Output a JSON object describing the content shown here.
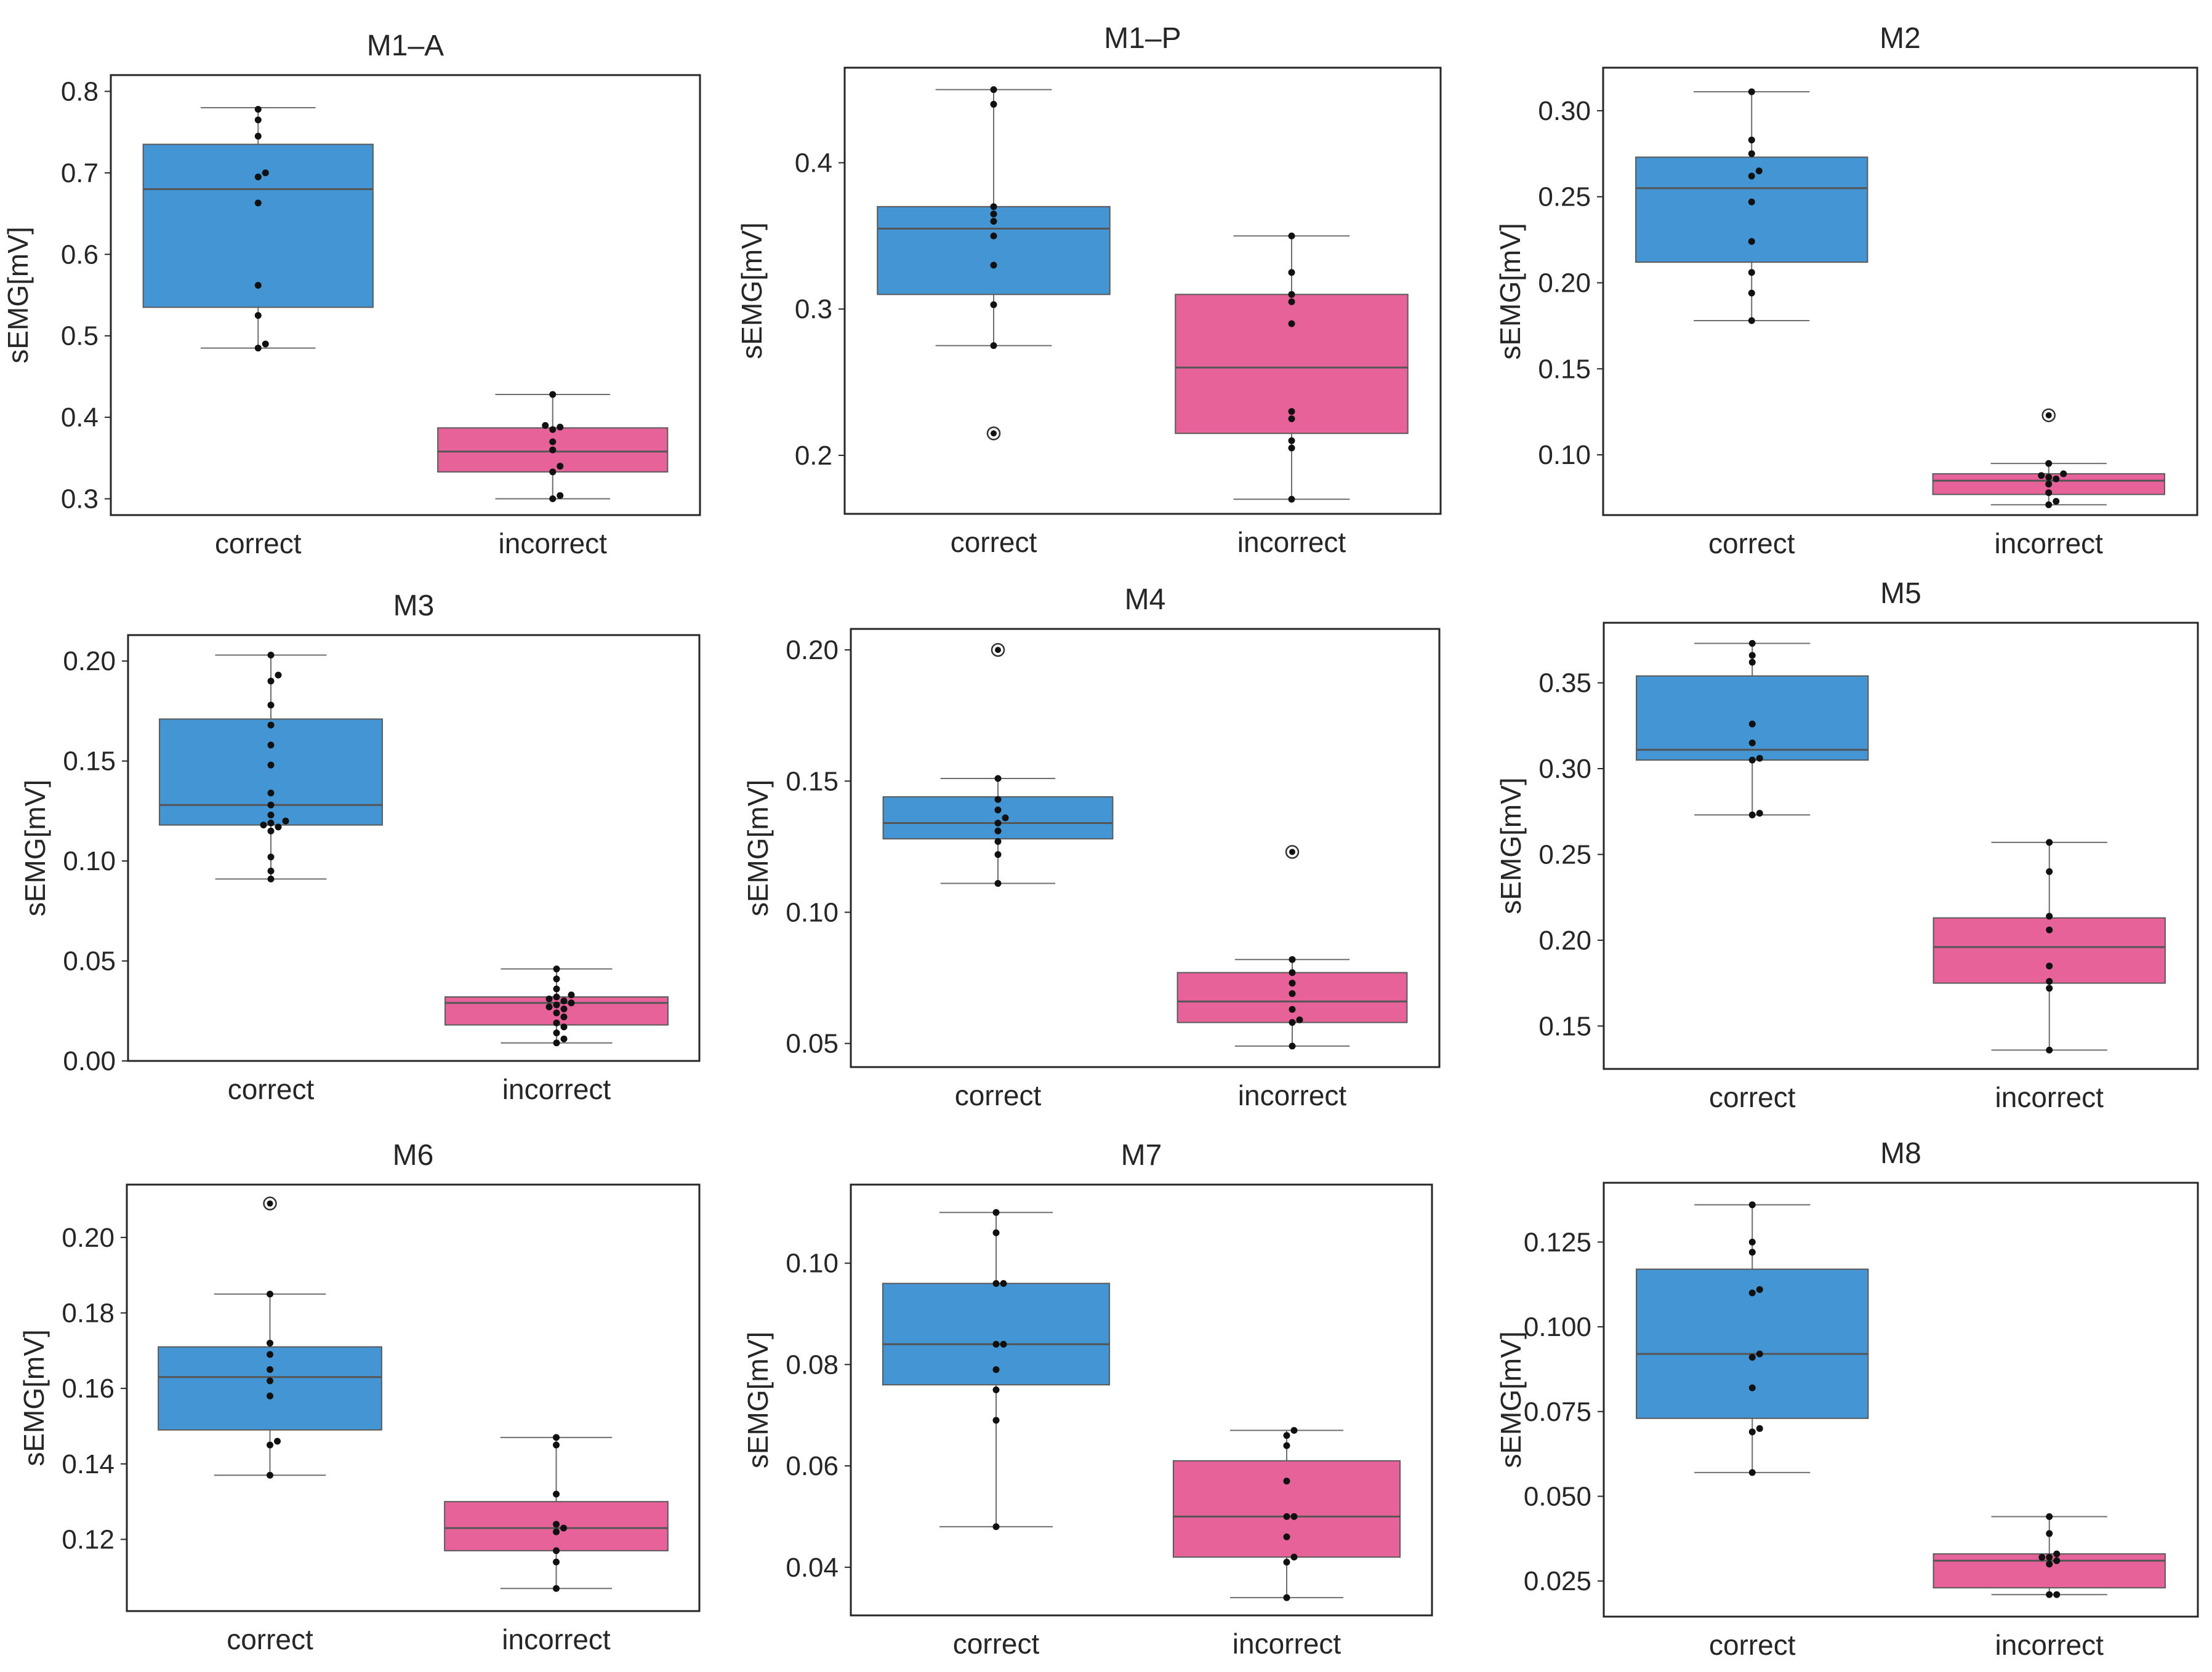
{
  "figure": {
    "colors": {
      "correct": "#4495D3",
      "incorrect": "#E8629A",
      "axis": "#262626",
      "median": "#555555",
      "whisker": "#6e6e6e",
      "point": "#111111"
    }
  },
  "chart_data": [
    {
      "type": "box",
      "title": "M1–A",
      "ylabel": "sEMG[mV]",
      "categories": [
        "correct",
        "incorrect"
      ],
      "ylim": [
        0.28,
        0.82
      ],
      "yticks": [
        0.3,
        0.4,
        0.5,
        0.6,
        0.7,
        0.8
      ],
      "tick_decimals": 1,
      "boxes": [
        {
          "category": "correct",
          "whisker_low": 0.485,
          "q1": 0.535,
          "median": 0.68,
          "q3": 0.735,
          "whisker_high": 0.78,
          "fliers": [],
          "points": [
            0.485,
            0.49,
            0.525,
            0.562,
            0.663,
            0.695,
            0.7,
            0.745,
            0.765,
            0.778
          ]
        },
        {
          "category": "incorrect",
          "whisker_low": 0.3,
          "q1": 0.333,
          "median": 0.358,
          "q3": 0.387,
          "whisker_high": 0.428,
          "fliers": [],
          "points": [
            0.3,
            0.304,
            0.333,
            0.34,
            0.36,
            0.37,
            0.385,
            0.388,
            0.39,
            0.428
          ]
        }
      ]
    },
    {
      "type": "box",
      "title": "M1–P",
      "ylabel": "sEMG[mV]",
      "categories": [
        "correct",
        "incorrect"
      ],
      "ylim": [
        0.16,
        0.465
      ],
      "yticks": [
        0.2,
        0.3,
        0.4
      ],
      "tick_decimals": 1,
      "boxes": [
        {
          "category": "correct",
          "whisker_low": 0.275,
          "q1": 0.31,
          "median": 0.355,
          "q3": 0.37,
          "whisker_high": 0.45,
          "fliers": [
            0.215
          ],
          "points": [
            0.275,
            0.303,
            0.33,
            0.35,
            0.36,
            0.365,
            0.37,
            0.44,
            0.45
          ]
        },
        {
          "category": "incorrect",
          "whisker_low": 0.17,
          "q1": 0.215,
          "median": 0.26,
          "q3": 0.31,
          "whisker_high": 0.35,
          "fliers": [],
          "points": [
            0.17,
            0.205,
            0.21,
            0.225,
            0.23,
            0.29,
            0.305,
            0.31,
            0.325,
            0.35
          ]
        }
      ]
    },
    {
      "type": "box",
      "title": "M2",
      "ylabel": "sEMG[mV]",
      "categories": [
        "correct",
        "incorrect"
      ],
      "ylim": [
        0.065,
        0.325
      ],
      "yticks": [
        0.1,
        0.15,
        0.2,
        0.25,
        0.3
      ],
      "tick_decimals": 2,
      "boxes": [
        {
          "category": "correct",
          "whisker_low": 0.178,
          "q1": 0.212,
          "median": 0.255,
          "q3": 0.273,
          "whisker_high": 0.311,
          "fliers": [],
          "points": [
            0.178,
            0.194,
            0.206,
            0.224,
            0.247,
            0.262,
            0.265,
            0.275,
            0.283,
            0.311
          ]
        },
        {
          "category": "incorrect",
          "whisker_low": 0.071,
          "q1": 0.077,
          "median": 0.085,
          "q3": 0.089,
          "whisker_high": 0.095,
          "fliers": [
            0.123
          ],
          "points": [
            0.071,
            0.073,
            0.078,
            0.083,
            0.086,
            0.087,
            0.088,
            0.089,
            0.095
          ]
        }
      ]
    },
    {
      "type": "box",
      "title": "M3",
      "ylabel": "sEMG[mV]",
      "categories": [
        "correct",
        "incorrect"
      ],
      "ylim": [
        0.0,
        0.213
      ],
      "yticks": [
        0.0,
        0.05,
        0.1,
        0.15,
        0.2
      ],
      "tick_decimals": 2,
      "boxes": [
        {
          "category": "correct",
          "whisker_low": 0.091,
          "q1": 0.118,
          "median": 0.128,
          "q3": 0.171,
          "whisker_high": 0.203,
          "fliers": [],
          "points": [
            0.091,
            0.095,
            0.102,
            0.115,
            0.117,
            0.118,
            0.119,
            0.12,
            0.123,
            0.128,
            0.134,
            0.148,
            0.158,
            0.168,
            0.178,
            0.19,
            0.193,
            0.203
          ]
        },
        {
          "category": "incorrect",
          "whisker_low": 0.009,
          "q1": 0.018,
          "median": 0.029,
          "q3": 0.032,
          "whisker_high": 0.046,
          "fliers": [],
          "points": [
            0.009,
            0.011,
            0.014,
            0.017,
            0.019,
            0.022,
            0.024,
            0.026,
            0.027,
            0.028,
            0.029,
            0.03,
            0.031,
            0.032,
            0.033,
            0.036,
            0.041,
            0.046
          ]
        }
      ]
    },
    {
      "type": "box",
      "title": "M4",
      "ylabel": "sEMG[mV]",
      "categories": [
        "correct",
        "incorrect"
      ],
      "ylim": [
        0.041,
        0.208
      ],
      "yticks": [
        0.05,
        0.1,
        0.15,
        0.2
      ],
      "tick_decimals": 2,
      "boxes": [
        {
          "category": "correct",
          "whisker_low": 0.111,
          "q1": 0.128,
          "median": 0.134,
          "q3": 0.144,
          "whisker_high": 0.151,
          "fliers": [
            0.2
          ],
          "points": [
            0.111,
            0.122,
            0.127,
            0.131,
            0.134,
            0.136,
            0.139,
            0.143,
            0.151
          ]
        },
        {
          "category": "incorrect",
          "whisker_low": 0.049,
          "q1": 0.058,
          "median": 0.066,
          "q3": 0.077,
          "whisker_high": 0.082,
          "fliers": [
            0.123
          ],
          "points": [
            0.049,
            0.058,
            0.059,
            0.063,
            0.069,
            0.073,
            0.077,
            0.082
          ]
        }
      ]
    },
    {
      "type": "box",
      "title": "M5",
      "ylabel": "sEMG[mV]",
      "categories": [
        "correct",
        "incorrect"
      ],
      "ylim": [
        0.125,
        0.385
      ],
      "yticks": [
        0.15,
        0.2,
        0.25,
        0.3,
        0.35
      ],
      "tick_decimals": 2,
      "boxes": [
        {
          "category": "correct",
          "whisker_low": 0.273,
          "q1": 0.305,
          "median": 0.311,
          "q3": 0.354,
          "whisker_high": 0.373,
          "fliers": [],
          "points": [
            0.273,
            0.274,
            0.305,
            0.306,
            0.315,
            0.326,
            0.362,
            0.366,
            0.373
          ]
        },
        {
          "category": "incorrect",
          "whisker_low": 0.136,
          "q1": 0.175,
          "median": 0.196,
          "q3": 0.213,
          "whisker_high": 0.257,
          "fliers": [],
          "points": [
            0.136,
            0.172,
            0.176,
            0.185,
            0.206,
            0.214,
            0.24,
            0.257
          ]
        }
      ]
    },
    {
      "type": "box",
      "title": "M6",
      "ylabel": "sEMG[mV]",
      "categories": [
        "correct",
        "incorrect"
      ],
      "ylim": [
        0.101,
        0.214
      ],
      "yticks": [
        0.12,
        0.14,
        0.16,
        0.18,
        0.2
      ],
      "tick_decimals": 2,
      "boxes": [
        {
          "category": "correct",
          "whisker_low": 0.137,
          "q1": 0.149,
          "median": 0.163,
          "q3": 0.171,
          "whisker_high": 0.185,
          "fliers": [
            0.209
          ],
          "points": [
            0.137,
            0.145,
            0.146,
            0.158,
            0.162,
            0.165,
            0.169,
            0.172,
            0.185
          ]
        },
        {
          "category": "incorrect",
          "whisker_low": 0.107,
          "q1": 0.117,
          "median": 0.123,
          "q3": 0.13,
          "whisker_high": 0.147,
          "fliers": [],
          "points": [
            0.107,
            0.114,
            0.117,
            0.122,
            0.123,
            0.124,
            0.132,
            0.145,
            0.147
          ]
        }
      ]
    },
    {
      "type": "box",
      "title": "M7",
      "ylabel": "sEMG[mV]",
      "categories": [
        "correct",
        "incorrect"
      ],
      "ylim": [
        0.0305,
        0.1155
      ],
      "yticks": [
        0.04,
        0.06,
        0.08,
        0.1
      ],
      "tick_decimals": 2,
      "boxes": [
        {
          "category": "correct",
          "whisker_low": 0.048,
          "q1": 0.076,
          "median": 0.084,
          "q3": 0.096,
          "whisker_high": 0.11,
          "fliers": [],
          "points": [
            0.048,
            0.069,
            0.075,
            0.079,
            0.084,
            0.084,
            0.096,
            0.096,
            0.106,
            0.11
          ]
        },
        {
          "category": "incorrect",
          "whisker_low": 0.034,
          "q1": 0.042,
          "median": 0.05,
          "q3": 0.061,
          "whisker_high": 0.067,
          "fliers": [],
          "points": [
            0.034,
            0.041,
            0.042,
            0.046,
            0.05,
            0.05,
            0.057,
            0.064,
            0.066,
            0.067
          ]
        }
      ]
    },
    {
      "type": "box",
      "title": "M8",
      "ylabel": "sEMG[mV]",
      "categories": [
        "correct",
        "incorrect"
      ],
      "ylim": [
        0.0145,
        0.1425
      ],
      "yticks": [
        0.025,
        0.05,
        0.075,
        0.1,
        0.125
      ],
      "tick_decimals": 3,
      "boxes": [
        {
          "category": "correct",
          "whisker_low": 0.057,
          "q1": 0.073,
          "median": 0.092,
          "q3": 0.117,
          "whisker_high": 0.136,
          "fliers": [],
          "points": [
            0.057,
            0.069,
            0.07,
            0.082,
            0.091,
            0.092,
            0.11,
            0.111,
            0.122,
            0.125,
            0.136
          ]
        },
        {
          "category": "incorrect",
          "whisker_low": 0.021,
          "q1": 0.023,
          "median": 0.031,
          "q3": 0.033,
          "whisker_high": 0.044,
          "fliers": [],
          "points": [
            0.021,
            0.021,
            0.03,
            0.031,
            0.032,
            0.032,
            0.033,
            0.039,
            0.044
          ]
        }
      ]
    }
  ]
}
